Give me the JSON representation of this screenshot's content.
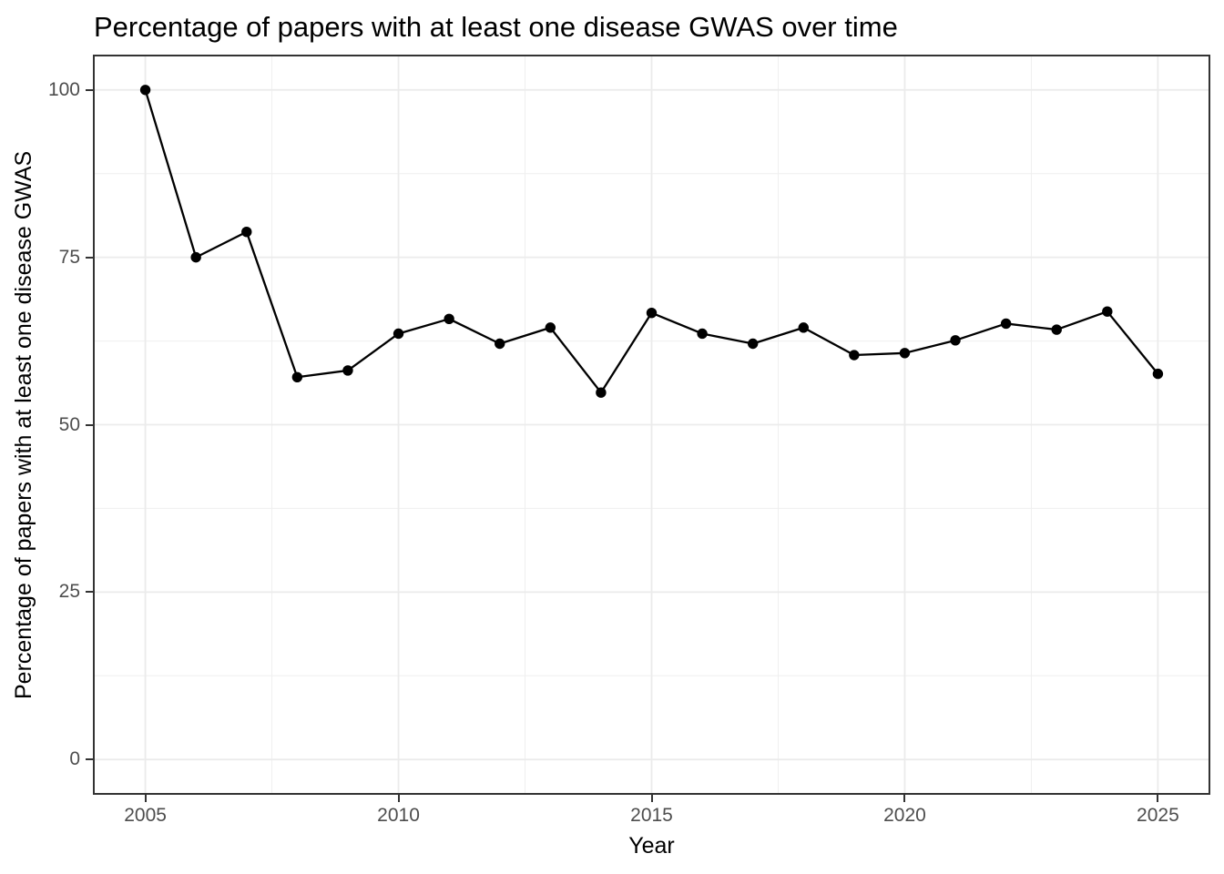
{
  "chart_data": {
    "type": "line",
    "title": "Percentage of papers with at least one disease GWAS over time",
    "xlabel": "Year",
    "ylabel": "Percentage of papers with at least one disease GWAS",
    "series": [
      {
        "name": "Percentage of papers with at least one disease GWAS",
        "x": [
          2005,
          2006,
          2007,
          2008,
          2009,
          2010,
          2011,
          2012,
          2013,
          2014,
          2015,
          2016,
          2017,
          2018,
          2019,
          2020,
          2021,
          2022,
          2023,
          2024,
          2025
        ],
        "values": [
          100,
          75,
          78.8,
          57.1,
          58.1,
          63.6,
          65.8,
          62.1,
          64.5,
          54.8,
          66.7,
          63.6,
          62.1,
          64.5,
          60.4,
          60.7,
          62.6,
          65.1,
          64.2,
          66.9,
          57.6
        ]
      }
    ],
    "xlim": [
      2004,
      2026
    ],
    "ylim": [
      -5,
      105
    ],
    "x_ticks": [
      2005,
      2010,
      2015,
      2020,
      2025
    ],
    "y_ticks": [
      0,
      25,
      50,
      75,
      100
    ],
    "x_minor_ticks": [
      2007.5,
      2012.5,
      2017.5,
      2022.5
    ],
    "y_minor_ticks": [
      12.5,
      37.5,
      62.5,
      87.5
    ],
    "grid": "major-and-minor",
    "legend": "none",
    "marker": "filled-circle",
    "colors": {
      "line": "#000000",
      "point": "#000000",
      "grid_major": "#EBEBEB",
      "grid_minor": "#EFEFEF",
      "panel_border": "#333333",
      "tick_mark": "#333333",
      "tick_label": "#4D4D4D",
      "title_text": "#000000",
      "background": "#FFFFFF"
    }
  }
}
